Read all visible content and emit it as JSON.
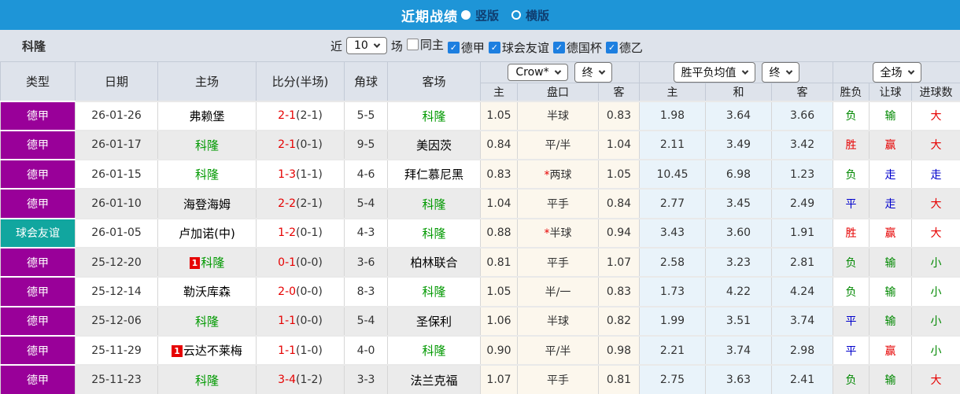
{
  "titlebar": {
    "title": "近期战绩",
    "radios": [
      {
        "label": "竖版",
        "selected": true
      },
      {
        "label": "横版",
        "selected": false
      }
    ]
  },
  "filter": {
    "team": "科隆",
    "near_label": "近",
    "count": "10",
    "matches_label": "场",
    "checkboxes": [
      {
        "label": "同主",
        "checked": false
      },
      {
        "label": "德甲",
        "checked": true
      },
      {
        "label": "球会友谊",
        "checked": true
      },
      {
        "label": "德国杯",
        "checked": true
      },
      {
        "label": "德乙",
        "checked": true
      }
    ]
  },
  "header": {
    "left_cols": [
      "类型",
      "日期",
      "主场",
      "比分(半场)",
      "角球",
      "客场"
    ],
    "groups": [
      {
        "selects": [
          "Crow*",
          "终"
        ]
      },
      {
        "selects": [
          "胜平负均值",
          "终"
        ]
      },
      {
        "selects": [
          "全场"
        ]
      }
    ],
    "sub_cols": [
      "主",
      "盘口",
      "客",
      "主",
      "和",
      "客",
      "胜负",
      "让球",
      "进球数"
    ]
  },
  "colors": {
    "bundesliga": "#990099",
    "friendly": "#11a69f",
    "red": "#e60000",
    "green": "#008800",
    "blue": "#0000cc",
    "team_green": "#009900",
    "topbar": "#1e95d7"
  },
  "rows": [
    {
      "league": "德甲",
      "league_type": "bundesliga",
      "date": "26-01-26",
      "home": {
        "name": "弗赖堡",
        "green": false,
        "badge": ""
      },
      "score": "2-1",
      "half": "(2-1)",
      "corners": "5-5",
      "away": {
        "name": "科隆",
        "green": true,
        "badge": ""
      },
      "asian": {
        "home": "1.05",
        "star": false,
        "handicap": "半球",
        "away": "0.83"
      },
      "euro": {
        "home": "1.98",
        "draw": "3.64",
        "away": "3.66"
      },
      "results": [
        {
          "text": "负",
          "color": "green"
        },
        {
          "text": "输",
          "color": "green"
        },
        {
          "text": "大",
          "color": "red"
        }
      ]
    },
    {
      "league": "德甲",
      "league_type": "bundesliga",
      "date": "26-01-17",
      "home": {
        "name": "科隆",
        "green": true,
        "badge": ""
      },
      "score": "2-1",
      "half": "(0-1)",
      "corners": "9-5",
      "away": {
        "name": "美因茨",
        "green": false,
        "badge": ""
      },
      "asian": {
        "home": "0.84",
        "star": false,
        "handicap": "平/半",
        "away": "1.04"
      },
      "euro": {
        "home": "2.11",
        "draw": "3.49",
        "away": "3.42"
      },
      "results": [
        {
          "text": "胜",
          "color": "red"
        },
        {
          "text": "赢",
          "color": "red"
        },
        {
          "text": "大",
          "color": "red"
        }
      ]
    },
    {
      "league": "德甲",
      "league_type": "bundesliga",
      "date": "26-01-15",
      "home": {
        "name": "科隆",
        "green": true,
        "badge": ""
      },
      "score": "1-3",
      "half": "(1-1)",
      "corners": "4-6",
      "away": {
        "name": "拜仁慕尼黑",
        "green": false,
        "badge": ""
      },
      "asian": {
        "home": "0.83",
        "star": true,
        "handicap": "两球",
        "away": "1.05"
      },
      "euro": {
        "home": "10.45",
        "draw": "6.98",
        "away": "1.23"
      },
      "results": [
        {
          "text": "负",
          "color": "green"
        },
        {
          "text": "走",
          "color": "blue"
        },
        {
          "text": "走",
          "color": "blue"
        }
      ]
    },
    {
      "league": "德甲",
      "league_type": "bundesliga",
      "date": "26-01-10",
      "home": {
        "name": "海登海姆",
        "green": false,
        "badge": ""
      },
      "score": "2-2",
      "half": "(2-1)",
      "corners": "5-4",
      "away": {
        "name": "科隆",
        "green": true,
        "badge": ""
      },
      "asian": {
        "home": "1.04",
        "star": false,
        "handicap": "平手",
        "away": "0.84"
      },
      "euro": {
        "home": "2.77",
        "draw": "3.45",
        "away": "2.49"
      },
      "results": [
        {
          "text": "平",
          "color": "blue"
        },
        {
          "text": "走",
          "color": "blue"
        },
        {
          "text": "大",
          "color": "red"
        }
      ]
    },
    {
      "league": "球会友谊",
      "league_type": "friendly",
      "date": "26-01-05",
      "home": {
        "name": "卢加诺(中)",
        "green": false,
        "badge": ""
      },
      "score": "1-2",
      "half": "(0-1)",
      "corners": "4-3",
      "away": {
        "name": "科隆",
        "green": true,
        "badge": ""
      },
      "asian": {
        "home": "0.88",
        "star": true,
        "handicap": "半球",
        "away": "0.94"
      },
      "euro": {
        "home": "3.43",
        "draw": "3.60",
        "away": "1.91"
      },
      "results": [
        {
          "text": "胜",
          "color": "red"
        },
        {
          "text": "赢",
          "color": "red"
        },
        {
          "text": "大",
          "color": "red"
        }
      ]
    },
    {
      "league": "德甲",
      "league_type": "bundesliga",
      "date": "25-12-20",
      "home": {
        "name": "科隆",
        "green": true,
        "badge": "1"
      },
      "score": "0-1",
      "half": "(0-0)",
      "corners": "3-6",
      "away": {
        "name": "柏林联合",
        "green": false,
        "badge": ""
      },
      "asian": {
        "home": "0.81",
        "star": false,
        "handicap": "平手",
        "away": "1.07"
      },
      "euro": {
        "home": "2.58",
        "draw": "3.23",
        "away": "2.81"
      },
      "results": [
        {
          "text": "负",
          "color": "green"
        },
        {
          "text": "输",
          "color": "green"
        },
        {
          "text": "小",
          "color": "green"
        }
      ]
    },
    {
      "league": "德甲",
      "league_type": "bundesliga",
      "date": "25-12-14",
      "home": {
        "name": "勒沃库森",
        "green": false,
        "badge": ""
      },
      "score": "2-0",
      "half": "(0-0)",
      "corners": "8-3",
      "away": {
        "name": "科隆",
        "green": true,
        "badge": ""
      },
      "asian": {
        "home": "1.05",
        "star": false,
        "handicap": "半/一",
        "away": "0.83"
      },
      "euro": {
        "home": "1.73",
        "draw": "4.22",
        "away": "4.24"
      },
      "results": [
        {
          "text": "负",
          "color": "green"
        },
        {
          "text": "输",
          "color": "green"
        },
        {
          "text": "小",
          "color": "green"
        }
      ]
    },
    {
      "league": "德甲",
      "league_type": "bundesliga",
      "date": "25-12-06",
      "home": {
        "name": "科隆",
        "green": true,
        "badge": ""
      },
      "score": "1-1",
      "half": "(0-0)",
      "corners": "5-4",
      "away": {
        "name": "圣保利",
        "green": false,
        "badge": ""
      },
      "asian": {
        "home": "1.06",
        "star": false,
        "handicap": "半球",
        "away": "0.82"
      },
      "euro": {
        "home": "1.99",
        "draw": "3.51",
        "away": "3.74"
      },
      "results": [
        {
          "text": "平",
          "color": "blue"
        },
        {
          "text": "输",
          "color": "green"
        },
        {
          "text": "小",
          "color": "green"
        }
      ]
    },
    {
      "league": "德甲",
      "league_type": "bundesliga",
      "date": "25-11-29",
      "home": {
        "name": "云达不莱梅",
        "green": false,
        "badge": "1"
      },
      "score": "1-1",
      "half": "(1-0)",
      "corners": "4-0",
      "away": {
        "name": "科隆",
        "green": true,
        "badge": ""
      },
      "asian": {
        "home": "0.90",
        "star": false,
        "handicap": "平/半",
        "away": "0.98"
      },
      "euro": {
        "home": "2.21",
        "draw": "3.74",
        "away": "2.98"
      },
      "results": [
        {
          "text": "平",
          "color": "blue"
        },
        {
          "text": "赢",
          "color": "red"
        },
        {
          "text": "小",
          "color": "green"
        }
      ]
    },
    {
      "league": "德甲",
      "league_type": "bundesliga",
      "date": "25-11-23",
      "home": {
        "name": "科隆",
        "green": true,
        "badge": ""
      },
      "score": "3-4",
      "half": "(1-2)",
      "corners": "3-3",
      "away": {
        "name": "法兰克福",
        "green": false,
        "badge": ""
      },
      "asian": {
        "home": "1.07",
        "star": false,
        "handicap": "平手",
        "away": "0.81"
      },
      "euro": {
        "home": "2.75",
        "draw": "3.63",
        "away": "2.41"
      },
      "results": [
        {
          "text": "负",
          "color": "green"
        },
        {
          "text": "输",
          "color": "green"
        },
        {
          "text": "大",
          "color": "red"
        }
      ]
    }
  ]
}
